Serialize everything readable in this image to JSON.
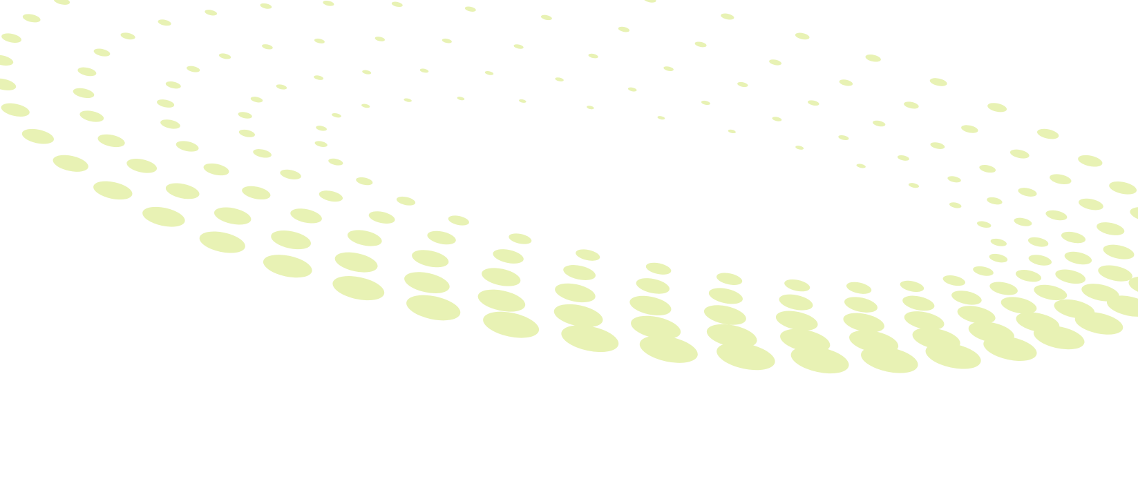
{
  "artwork": {
    "dot_color": "#e8f2b4",
    "background_color": "#ffffff"
  }
}
